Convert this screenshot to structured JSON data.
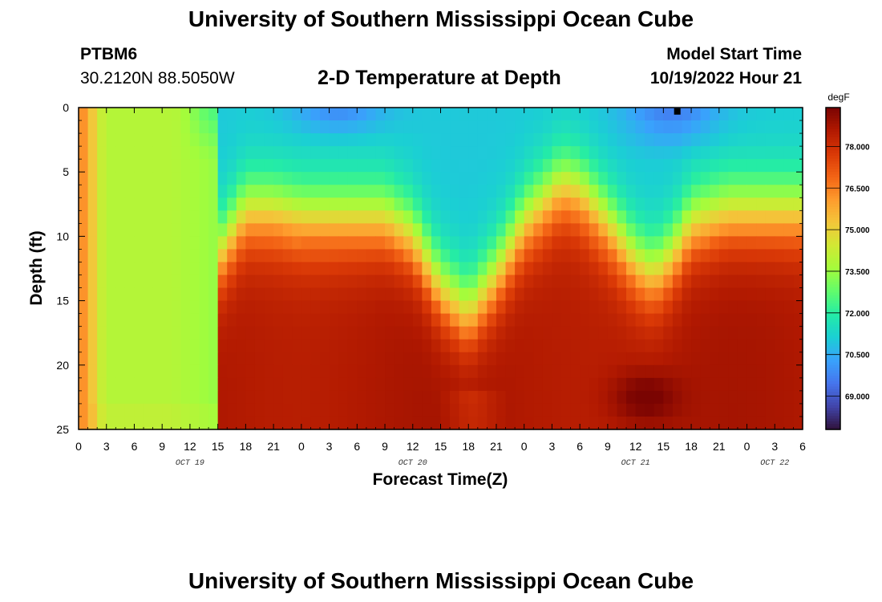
{
  "header": {
    "title": "University of Southern Mississippi Ocean Cube",
    "station_id": "PTBM6",
    "coordinates": "30.2120N  88.5050W",
    "subtitle": "2-D Temperature at Depth",
    "model_start_label": "Model Start Time",
    "model_start_value": "10/19/2022 Hour 21"
  },
  "footer": {
    "title": "University of Southern Mississippi Ocean Cube"
  },
  "colors": {
    "colormap": [
      "#30123b",
      "#4145ab",
      "#4675ed",
      "#39a2fc",
      "#1bcfd4",
      "#24eca6",
      "#61fc6c",
      "#a4fc3b",
      "#d1e834",
      "#f3c63a",
      "#fe9b2d",
      "#f36315",
      "#d93806",
      "#b11901",
      "#7a0402"
    ]
  },
  "chart_data": {
    "type": "heatmap",
    "title": "2-D Temperature at Depth",
    "xlabel": "Forecast Time(Z)",
    "ylabel": "Depth (ft)",
    "x_ticks": [
      "0",
      "3",
      "6",
      "9",
      "12",
      "15",
      "18",
      "21",
      "0",
      "3",
      "6",
      "9",
      "12",
      "15",
      "18",
      "21",
      "0",
      "3",
      "6",
      "9",
      "12",
      "15",
      "18",
      "21",
      "0",
      "3",
      "6"
    ],
    "x_hours": [
      0,
      3,
      6,
      9,
      12,
      15,
      18,
      21,
      24,
      27,
      30,
      33,
      36,
      39,
      42,
      45,
      48,
      51,
      54,
      57,
      60,
      63,
      66,
      69,
      72,
      75,
      78
    ],
    "xlim": [
      0,
      78
    ],
    "date_labels": [
      {
        "label": "OCT 19",
        "hour": 12
      },
      {
        "label": "OCT 20",
        "hour": 36
      },
      {
        "label": "OCT 21",
        "hour": 60
      },
      {
        "label": "OCT 22",
        "hour": 75
      }
    ],
    "y_ticks": [
      0,
      5,
      10,
      15,
      20,
      25
    ],
    "ylim": [
      0,
      25
    ],
    "colorbar": {
      "unit": "degF",
      "labels": [
        "69.000",
        "70.500",
        "72.000",
        "73.500",
        "75.000",
        "76.500",
        "78.000"
      ],
      "label_values": [
        69.0,
        70.5,
        72.0,
        73.5,
        75.0,
        76.5,
        78.0
      ],
      "range": [
        67.8,
        79.4
      ]
    },
    "marker_point": {
      "hour": 64.5,
      "depth": 0.3
    },
    "grid_dims": {
      "cols": 78,
      "rows": 25
    },
    "value_model": {
      "cold_surface": 71.0,
      "warm_deep": 78.6,
      "interface_depth_points": {
        "hours": [
          0,
          10,
          14,
          15.5,
          18,
          21,
          24,
          30,
          33,
          36,
          39,
          42,
          45,
          48,
          52,
          54,
          57,
          60,
          62,
          64,
          66,
          70,
          74,
          78
        ],
        "depths": [
          30,
          30,
          30,
          11,
          8,
          8,
          8.5,
          8.5,
          8.5,
          10,
          14,
          16,
          13,
          9,
          6,
          6.5,
          9,
          12,
          13,
          11.5,
          9,
          8,
          8,
          8
        ]
      }
    }
  }
}
